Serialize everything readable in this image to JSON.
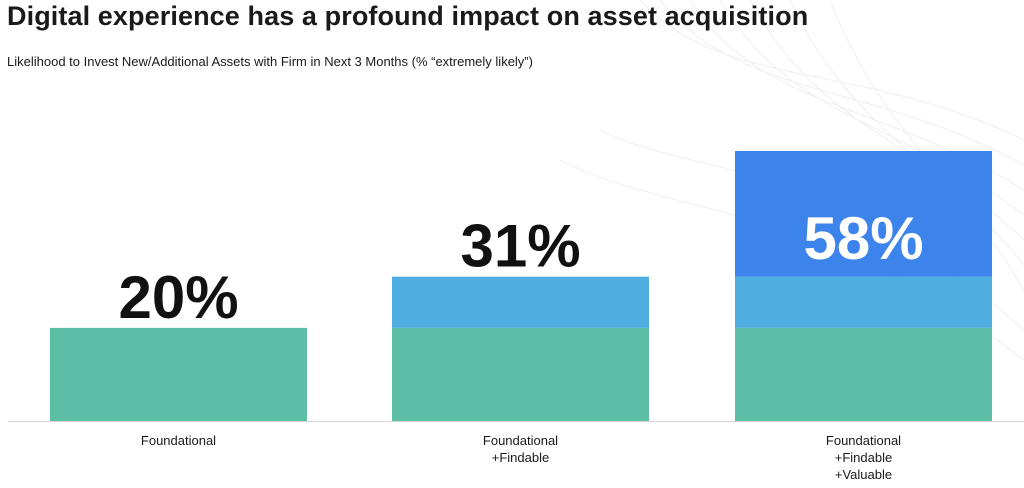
{
  "header": {
    "title": "Digital experience has a profound impact on asset acquisition",
    "subtitle": "Likelihood to Invest New/Additional Assets with Firm in Next 3 Months (% “extremely likely”)"
  },
  "colors": {
    "foundational": "#5cbfa5",
    "findable": "#4fade0",
    "valuable": "#3c84ec",
    "axis": "#d5d5d5",
    "text_dark": "#111111",
    "text_light": "#ffffff"
  },
  "chart_data": {
    "type": "bar",
    "stacked": true,
    "title": "Digital experience has a profound impact on asset acquisition",
    "subtitle": "Likelihood to Invest New/Additional Assets with Firm in Next 3 Months (% “extremely likely”)",
    "unit": "%",
    "categories": [
      [
        "Foundational"
      ],
      [
        "Foundational",
        "+Findable"
      ],
      [
        "Foundational",
        "+Findable",
        "+Valuable"
      ]
    ],
    "series": [
      {
        "key": "foundational",
        "values": [
          20,
          20,
          20
        ]
      },
      {
        "key": "findable",
        "values": [
          0,
          11,
          11
        ]
      },
      {
        "key": "valuable",
        "values": [
          0,
          0,
          27
        ]
      }
    ],
    "totals": [
      20,
      31,
      58
    ],
    "total_labels": [
      "20%",
      "31%",
      "58%"
    ],
    "ylim": [
      0,
      58
    ],
    "grid": false,
    "legend": "none"
  }
}
